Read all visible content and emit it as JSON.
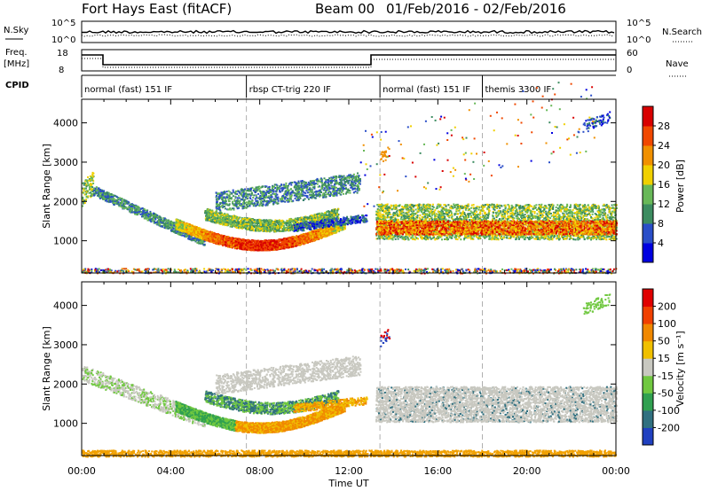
{
  "header": {
    "station": "Fort Hays East (fitACF)",
    "beam": "Beam 00",
    "date_range": "01/Feb/2016 - 02/Feb/2016"
  },
  "noise_panel": {
    "left_label": "N.Sky",
    "right_label": "N.Search",
    "left_ticks": [
      "10^5",
      "10^0"
    ],
    "right_ticks": [
      "10^5",
      "10^0"
    ]
  },
  "freq_panel": {
    "left_label_line1": "Freq.",
    "left_label_line2": "[MHz]",
    "right_label": "Nave",
    "left_ticks": [
      "18",
      "8"
    ],
    "right_ticks": [
      "60",
      "0"
    ]
  },
  "cpid": {
    "label": "CPID",
    "segments": [
      {
        "text": "normal (fast) 151 IF",
        "start_h": 0.0
      },
      {
        "text": "rbsp CT-trig 220 IF",
        "start_h": 7.4
      },
      {
        "text": "normal (fast) 151 IF",
        "start_h": 13.4
      },
      {
        "text": "themis 3300 IF",
        "start_h": 18.0
      }
    ]
  },
  "colors": {
    "power": [
      "#0000e0",
      "#2a4ec8",
      "#3c8c60",
      "#68b858",
      "#f0d000",
      "#f09000",
      "#f04800",
      "#d80000"
    ],
    "velocity": [
      "#e00000",
      "#f04000",
      "#f08800",
      "#f0c000",
      "#c8c8c0",
      "#70c840",
      "#30a050",
      "#307080",
      "#2040c0"
    ],
    "ground": "#f0a000"
  },
  "chart_data": [
    {
      "type": "heatmap",
      "title": "Power",
      "ylabel": "Slant Range [km]",
      "ylim": [
        180,
        4600
      ],
      "xlim_hours": [
        0,
        24
      ],
      "yticks": [
        1000,
        2000,
        3000,
        4000
      ],
      "colorbar_label": "Power [dB]",
      "colorbar_ticks": [
        "4",
        "8",
        "12",
        "16",
        "20",
        "24",
        "28"
      ],
      "features": [
        {
          "name": "descending echo band",
          "x_hours": [
            0.3,
            5.6
          ],
          "range_km": [
            2400,
            1000
          ],
          "power_db": [
            8,
            16
          ]
        },
        {
          "name": "main evening arc",
          "x_hours": [
            4.5,
            11.5
          ],
          "range_km": [
            850,
            1500
          ],
          "power_db": [
            20,
            30
          ]
        },
        {
          "name": "upper branches",
          "x_hours": [
            6.0,
            12.5
          ],
          "range_km": [
            1600,
            2500
          ],
          "power_db": [
            8,
            14
          ]
        },
        {
          "name": "morning scatter",
          "x_hours": [
            13.3,
            24.0
          ],
          "range_km": [
            1100,
            2000
          ],
          "power_db": [
            16,
            30
          ]
        }
      ]
    },
    {
      "type": "heatmap",
      "title": "Velocity",
      "xlabel": "Time UT",
      "ylabel": "Slant Range [km]",
      "ylim": [
        180,
        4600
      ],
      "xlim_hours": [
        0,
        24
      ],
      "xticks": [
        "00:00",
        "04:00",
        "08:00",
        "12:00",
        "16:00",
        "20:00",
        "00:00"
      ],
      "yticks": [
        1000,
        2000,
        3000,
        4000
      ],
      "colorbar_label": "Velocity [m s⁻¹]",
      "colorbar_ticks": [
        "200",
        "100",
        "50",
        "15",
        "-15",
        "-50",
        "-100",
        "-200"
      ],
      "features": [
        {
          "name": "evening arc",
          "x_hours": [
            4.5,
            11.5
          ],
          "range_km": [
            900,
            1500
          ],
          "velocity_ms": [
            -100,
            -30
          ]
        },
        {
          "name": "ground scatter",
          "x_hours": [
            13.3,
            24.0
          ],
          "range_km": [
            1100,
            2000
          ],
          "velocity_ms": [
            -15,
            15
          ]
        }
      ]
    }
  ]
}
